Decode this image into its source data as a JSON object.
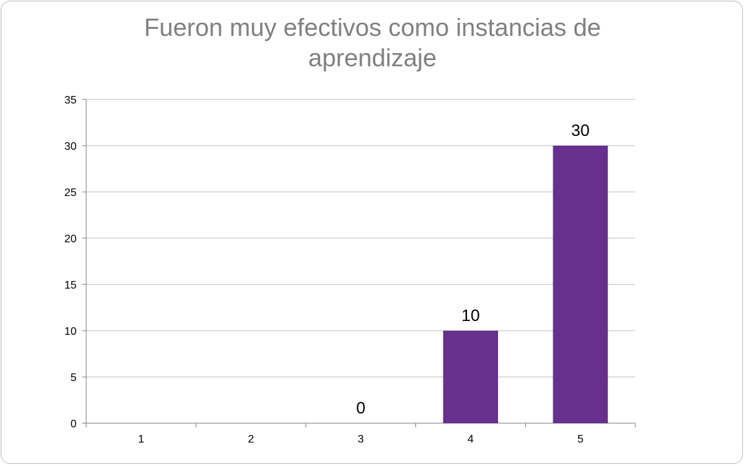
{
  "chart_data": {
    "type": "bar",
    "title_lines": [
      "Fueron muy efectivos como instancias de",
      "aprendizaje"
    ],
    "categories": [
      "1",
      "2",
      "3",
      "4",
      "5"
    ],
    "values": [
      null,
      null,
      0,
      10,
      30
    ],
    "data_labels": [
      "",
      "",
      "0",
      "10",
      "30"
    ],
    "ylim": [
      0,
      35
    ],
    "yticks": [
      "0",
      "5",
      "10",
      "15",
      "20",
      "25",
      "30",
      "35"
    ],
    "grid": true,
    "legend": "none",
    "bar_color": "#66308c",
    "grid_color": "#bfbfbf",
    "axis_color": "#808080"
  }
}
